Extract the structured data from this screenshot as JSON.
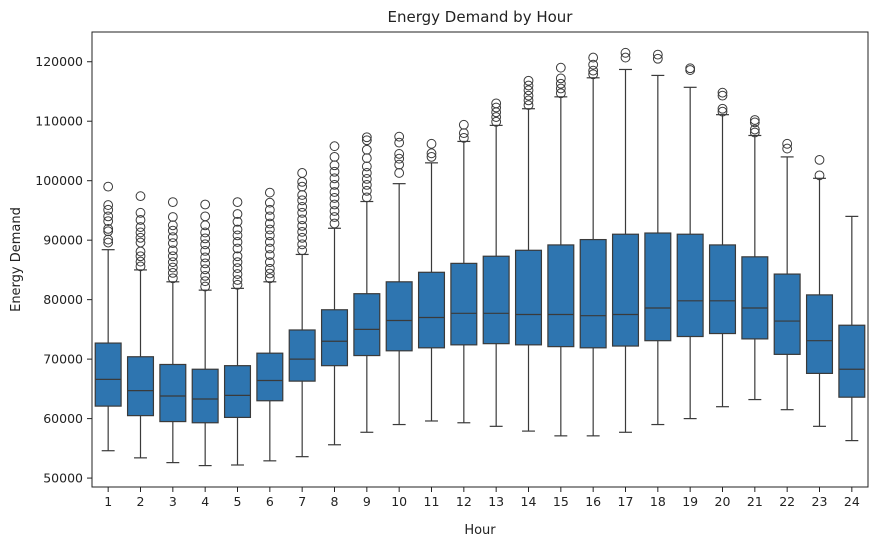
{
  "chart_data": {
    "type": "box",
    "title": "Energy Demand by Hour",
    "xlabel": "Hour",
    "ylabel": "Energy Demand",
    "ylim": [
      48500,
      125000
    ],
    "yticks": [
      50000,
      60000,
      70000,
      80000,
      90000,
      100000,
      110000,
      120000
    ],
    "grid": false,
    "colors": {
      "box": "#2e75b0",
      "line": "#3a3a3a"
    },
    "categories": [
      "1",
      "2",
      "3",
      "4",
      "5",
      "6",
      "7",
      "8",
      "9",
      "10",
      "11",
      "12",
      "13",
      "14",
      "15",
      "16",
      "17",
      "18",
      "19",
      "20",
      "21",
      "22",
      "23",
      "24"
    ],
    "boxes": [
      {
        "whisker_low": 54600,
        "q1": 62100,
        "median": 66600,
        "q3": 72700,
        "whisker_high": 88400,
        "outliers": [
          89600,
          90100,
          91500,
          91900,
          93200,
          94000,
          95100,
          95900,
          99000
        ]
      },
      {
        "whisker_low": 53400,
        "q1": 60500,
        "median": 64700,
        "q3": 70400,
        "whisker_high": 85000,
        "outliers": [
          85600,
          86400,
          87300,
          88100,
          89600,
          90400,
          91300,
          92200,
          93400,
          94600,
          97400
        ]
      },
      {
        "whisker_low": 52600,
        "q1": 59500,
        "median": 63800,
        "q3": 69100,
        "whisker_high": 83000,
        "outliers": [
          83600,
          84500,
          85400,
          86300,
          87300,
          88300,
          89500,
          90500,
          91600,
          92500,
          93900,
          96400
        ]
      },
      {
        "whisker_low": 52100,
        "q1": 59300,
        "median": 63300,
        "q3": 68300,
        "whisker_high": 81600,
        "outliers": [
          82200,
          83100,
          84000,
          85100,
          86100,
          87100,
          88200,
          89300,
          90300,
          91300,
          92500,
          94000,
          96000
        ]
      },
      {
        "whisker_low": 52200,
        "q1": 60200,
        "median": 63900,
        "q3": 68900,
        "whisker_high": 81900,
        "outliers": [
          82500,
          83300,
          84300,
          85300,
          86300,
          87300,
          88600,
          89700,
          90800,
          91800,
          93100,
          94400,
          96400
        ]
      },
      {
        "whisker_low": 52900,
        "q1": 63000,
        "median": 66400,
        "q3": 71000,
        "whisker_high": 83000,
        "outliers": [
          83600,
          84400,
          85200,
          86300,
          87500,
          88600,
          89700,
          90800,
          91800,
          92800,
          94000,
          95100,
          96300,
          98000
        ]
      },
      {
        "whisker_low": 53600,
        "q1": 66300,
        "median": 70000,
        "q3": 74900,
        "whisker_high": 87600,
        "outliers": [
          88300,
          89300,
          90400,
          91400,
          92400,
          93500,
          94600,
          95600,
          96700,
          97600,
          99000,
          99800,
          101300
        ]
      },
      {
        "whisker_low": 55600,
        "q1": 68900,
        "median": 73000,
        "q3": 78300,
        "whisker_high": 92000,
        "outliers": [
          92800,
          93900,
          94900,
          96000,
          97100,
          98100,
          99300,
          100400,
          101500,
          102600,
          104000,
          105800
        ]
      },
      {
        "whisker_low": 57700,
        "q1": 70600,
        "median": 75000,
        "q3": 81000,
        "whisker_high": 96500,
        "outliers": [
          97200,
          98300,
          99300,
          100300,
          101300,
          102400,
          103800,
          105200,
          106800,
          107300
        ]
      },
      {
        "whisker_low": 59000,
        "q1": 71400,
        "median": 76500,
        "q3": 83000,
        "whisker_high": 99500,
        "outliers": [
          101300,
          102700,
          103700,
          104500,
          106400,
          107400
        ]
      },
      {
        "whisker_low": 59600,
        "q1": 71900,
        "median": 77000,
        "q3": 84600,
        "whisker_high": 103000,
        "outliers": [
          104000,
          104600,
          106200
        ]
      },
      {
        "whisker_low": 59300,
        "q1": 72400,
        "median": 77700,
        "q3": 86100,
        "whisker_high": 106600,
        "outliers": [
          107200,
          108000,
          109400
        ]
      },
      {
        "whisker_low": 58700,
        "q1": 72600,
        "median": 77700,
        "q3": 87300,
        "whisker_high": 109300,
        "outliers": [
          109900,
          110700,
          111500,
          112300,
          113000
        ]
      },
      {
        "whisker_low": 57900,
        "q1": 72400,
        "median": 77500,
        "q3": 88300,
        "whisker_high": 112100,
        "outliers": [
          112700,
          113500,
          114300,
          115200,
          116000,
          116800
        ]
      },
      {
        "whisker_low": 57100,
        "q1": 72100,
        "median": 77500,
        "q3": 89200,
        "whisker_high": 114100,
        "outliers": [
          114700,
          115500,
          116300,
          117200,
          119000
        ]
      },
      {
        "whisker_low": 57100,
        "q1": 71900,
        "median": 77300,
        "q3": 90100,
        "whisker_high": 117300,
        "outliers": [
          117900,
          118500,
          119500,
          120700
        ]
      },
      {
        "whisker_low": 57700,
        "q1": 72200,
        "median": 77500,
        "q3": 91000,
        "whisker_high": 118700,
        "outliers": [
          120700,
          121500
        ]
      },
      {
        "whisker_low": 59000,
        "q1": 73100,
        "median": 78600,
        "q3": 91200,
        "whisker_high": 117700,
        "outliers": [
          120500,
          121200
        ]
      },
      {
        "whisker_low": 60000,
        "q1": 73800,
        "median": 79800,
        "q3": 91000,
        "whisker_high": 115700,
        "outliers": [
          118600,
          118900
        ]
      },
      {
        "whisker_low": 62000,
        "q1": 74300,
        "median": 79800,
        "q3": 89200,
        "whisker_high": 111100,
        "outliers": [
          111600,
          112100,
          114300,
          114800
        ]
      },
      {
        "whisker_low": 63200,
        "q1": 73400,
        "median": 78600,
        "q3": 87200,
        "whisker_high": 107600,
        "outliers": [
          108100,
          108600,
          109800,
          110200
        ]
      },
      {
        "whisker_low": 61500,
        "q1": 70800,
        "median": 76400,
        "q3": 84300,
        "whisker_high": 104000,
        "outliers": [
          105400,
          106200
        ]
      },
      {
        "whisker_low": 58700,
        "q1": 67600,
        "median": 73100,
        "q3": 80800,
        "whisker_high": 100400,
        "outliers": [
          100900,
          103500
        ]
      },
      {
        "whisker_low": 56300,
        "q1": 63600,
        "median": 68300,
        "q3": 75700,
        "whisker_high": 94000,
        "outliers": []
      }
    ]
  }
}
